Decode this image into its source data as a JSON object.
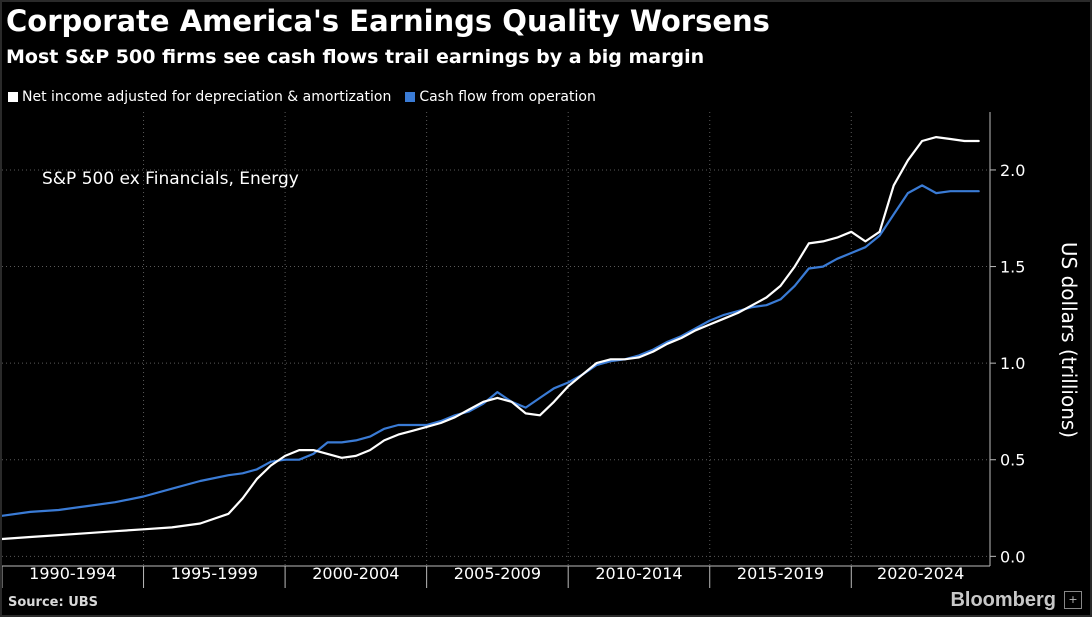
{
  "header": {
    "title": "Corporate America's Earnings Quality Worsens",
    "subtitle": "Most S&P 500 firms see cash flows trail earnings by a big margin"
  },
  "legend": [
    {
      "label": "Net income adjusted for depreciation & amortization",
      "color": "#ffffff"
    },
    {
      "label": "Cash flow from operation",
      "color": "#3a7bd5"
    }
  ],
  "footer": {
    "source": "Source: UBS",
    "brand": "Bloomberg",
    "brand_icon": "+"
  },
  "chart_data": {
    "type": "line",
    "title": "Corporate America's Earnings Quality Worsens",
    "subtitle": "Most S&P 500 firms see cash flows trail earnings by a big margin",
    "annotation": "S&P 500 ex Financials, Energy",
    "xlabel": "",
    "ylabel": "US dollars (trillions)",
    "ylim": [
      -0.05,
      2.3
    ],
    "xlim": [
      1990,
      2024.9
    ],
    "y_ticks": [
      0.0,
      0.5,
      1.0,
      1.5,
      2.0
    ],
    "y_tick_labels": [
      "0.0",
      "0.5",
      "1.0",
      "1.5",
      "2.0"
    ],
    "x_tick_labels": [
      "1990-1994",
      "1995-1999",
      "2000-2004",
      "2005-2009",
      "2010-2014",
      "2015-2019",
      "2020-2024"
    ],
    "x_group_bounds": [
      1990,
      1995,
      2000,
      2005,
      2010,
      2015,
      2020,
      2025
    ],
    "grid": "vertical dotted at 5-year boundaries, horizontal dotted at y ticks",
    "legend_position": "top-left",
    "y_axis_position": "right",
    "series": [
      {
        "name": "Net income adjusted for depreciation & amortization",
        "color": "#ffffff",
        "x": [
          1990.0,
          1991.0,
          1992.0,
          1993.0,
          1994.0,
          1995.0,
          1996.0,
          1997.0,
          1998.0,
          1998.5,
          1999.0,
          1999.5,
          2000.0,
          2000.5,
          2001.0,
          2001.5,
          2002.0,
          2002.5,
          2003.0,
          2003.5,
          2004.0,
          2004.5,
          2005.0,
          2005.5,
          2006.0,
          2006.5,
          2007.0,
          2007.5,
          2008.0,
          2008.5,
          2009.0,
          2009.5,
          2010.0,
          2010.5,
          2011.0,
          2011.5,
          2012.0,
          2012.5,
          2013.0,
          2013.5,
          2014.0,
          2014.5,
          2015.0,
          2015.5,
          2016.0,
          2016.5,
          2017.0,
          2017.5,
          2018.0,
          2018.5,
          2019.0,
          2019.5,
          2020.0,
          2020.5,
          2021.0,
          2021.5,
          2022.0,
          2022.5,
          2023.0,
          2023.5,
          2024.0,
          2024.5
        ],
        "y": [
          0.09,
          0.1,
          0.11,
          0.12,
          0.13,
          0.14,
          0.15,
          0.17,
          0.22,
          0.3,
          0.4,
          0.47,
          0.52,
          0.55,
          0.55,
          0.53,
          0.51,
          0.52,
          0.55,
          0.6,
          0.63,
          0.65,
          0.67,
          0.69,
          0.72,
          0.76,
          0.8,
          0.82,
          0.8,
          0.74,
          0.73,
          0.8,
          0.88,
          0.94,
          1.0,
          1.02,
          1.02,
          1.03,
          1.06,
          1.1,
          1.13,
          1.17,
          1.2,
          1.23,
          1.26,
          1.3,
          1.34,
          1.4,
          1.5,
          1.62,
          1.63,
          1.65,
          1.68,
          1.63,
          1.68,
          1.92,
          2.05,
          2.15,
          2.17,
          2.16,
          2.15,
          2.15
        ]
      },
      {
        "name": "Cash flow from operation",
        "color": "#3a7bd5",
        "x": [
          1990.0,
          1991.0,
          1992.0,
          1993.0,
          1994.0,
          1995.0,
          1996.0,
          1997.0,
          1998.0,
          1998.5,
          1999.0,
          1999.5,
          2000.0,
          2000.5,
          2001.0,
          2001.5,
          2002.0,
          2002.5,
          2003.0,
          2003.5,
          2004.0,
          2004.5,
          2005.0,
          2005.5,
          2006.0,
          2006.5,
          2007.0,
          2007.5,
          2008.0,
          2008.5,
          2009.0,
          2009.5,
          2010.0,
          2010.5,
          2011.0,
          2011.5,
          2012.0,
          2012.5,
          2013.0,
          2013.5,
          2014.0,
          2014.5,
          2015.0,
          2015.5,
          2016.0,
          2016.5,
          2017.0,
          2017.5,
          2018.0,
          2018.5,
          2019.0,
          2019.5,
          2020.0,
          2020.5,
          2021.0,
          2021.5,
          2022.0,
          2022.5,
          2023.0,
          2023.5,
          2024.0,
          2024.5
        ],
        "y": [
          0.21,
          0.23,
          0.24,
          0.26,
          0.28,
          0.31,
          0.35,
          0.39,
          0.42,
          0.43,
          0.45,
          0.49,
          0.5,
          0.5,
          0.53,
          0.59,
          0.59,
          0.6,
          0.62,
          0.66,
          0.68,
          0.68,
          0.68,
          0.7,
          0.73,
          0.75,
          0.79,
          0.85,
          0.8,
          0.77,
          0.82,
          0.87,
          0.9,
          0.94,
          0.99,
          1.01,
          1.02,
          1.04,
          1.07,
          1.11,
          1.14,
          1.18,
          1.22,
          1.25,
          1.27,
          1.29,
          1.3,
          1.33,
          1.4,
          1.49,
          1.5,
          1.54,
          1.57,
          1.6,
          1.66,
          1.77,
          1.88,
          1.92,
          1.88,
          1.89,
          1.89,
          1.89
        ]
      }
    ]
  }
}
